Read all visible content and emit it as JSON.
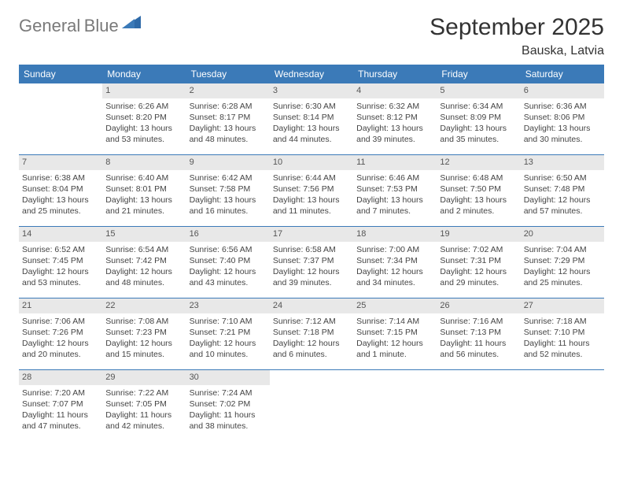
{
  "logo": {
    "text1": "General",
    "text2": "Blue"
  },
  "title": "September 2025",
  "location": "Bauska, Latvia",
  "colors": {
    "header_bg": "#3b7ab8",
    "header_text": "#ffffff",
    "daynum_bg": "#e8e8e8",
    "border": "#3b7ab8",
    "background": "#ffffff",
    "text": "#444444"
  },
  "layout": {
    "columns": 7,
    "rows": 5,
    "cell_fontsize": 10.5
  },
  "day_names": [
    "Sunday",
    "Monday",
    "Tuesday",
    "Wednesday",
    "Thursday",
    "Friday",
    "Saturday"
  ],
  "weeks": [
    [
      null,
      {
        "n": "1",
        "sr": "6:26 AM",
        "ss": "8:20 PM",
        "dl": "13 hours and 53 minutes."
      },
      {
        "n": "2",
        "sr": "6:28 AM",
        "ss": "8:17 PM",
        "dl": "13 hours and 48 minutes."
      },
      {
        "n": "3",
        "sr": "6:30 AM",
        "ss": "8:14 PM",
        "dl": "13 hours and 44 minutes."
      },
      {
        "n": "4",
        "sr": "6:32 AM",
        "ss": "8:12 PM",
        "dl": "13 hours and 39 minutes."
      },
      {
        "n": "5",
        "sr": "6:34 AM",
        "ss": "8:09 PM",
        "dl": "13 hours and 35 minutes."
      },
      {
        "n": "6",
        "sr": "6:36 AM",
        "ss": "8:06 PM",
        "dl": "13 hours and 30 minutes."
      }
    ],
    [
      {
        "n": "7",
        "sr": "6:38 AM",
        "ss": "8:04 PM",
        "dl": "13 hours and 25 minutes."
      },
      {
        "n": "8",
        "sr": "6:40 AM",
        "ss": "8:01 PM",
        "dl": "13 hours and 21 minutes."
      },
      {
        "n": "9",
        "sr": "6:42 AM",
        "ss": "7:58 PM",
        "dl": "13 hours and 16 minutes."
      },
      {
        "n": "10",
        "sr": "6:44 AM",
        "ss": "7:56 PM",
        "dl": "13 hours and 11 minutes."
      },
      {
        "n": "11",
        "sr": "6:46 AM",
        "ss": "7:53 PM",
        "dl": "13 hours and 7 minutes."
      },
      {
        "n": "12",
        "sr": "6:48 AM",
        "ss": "7:50 PM",
        "dl": "13 hours and 2 minutes."
      },
      {
        "n": "13",
        "sr": "6:50 AM",
        "ss": "7:48 PM",
        "dl": "12 hours and 57 minutes."
      }
    ],
    [
      {
        "n": "14",
        "sr": "6:52 AM",
        "ss": "7:45 PM",
        "dl": "12 hours and 53 minutes."
      },
      {
        "n": "15",
        "sr": "6:54 AM",
        "ss": "7:42 PM",
        "dl": "12 hours and 48 minutes."
      },
      {
        "n": "16",
        "sr": "6:56 AM",
        "ss": "7:40 PM",
        "dl": "12 hours and 43 minutes."
      },
      {
        "n": "17",
        "sr": "6:58 AM",
        "ss": "7:37 PM",
        "dl": "12 hours and 39 minutes."
      },
      {
        "n": "18",
        "sr": "7:00 AM",
        "ss": "7:34 PM",
        "dl": "12 hours and 34 minutes."
      },
      {
        "n": "19",
        "sr": "7:02 AM",
        "ss": "7:31 PM",
        "dl": "12 hours and 29 minutes."
      },
      {
        "n": "20",
        "sr": "7:04 AM",
        "ss": "7:29 PM",
        "dl": "12 hours and 25 minutes."
      }
    ],
    [
      {
        "n": "21",
        "sr": "7:06 AM",
        "ss": "7:26 PM",
        "dl": "12 hours and 20 minutes."
      },
      {
        "n": "22",
        "sr": "7:08 AM",
        "ss": "7:23 PM",
        "dl": "12 hours and 15 minutes."
      },
      {
        "n": "23",
        "sr": "7:10 AM",
        "ss": "7:21 PM",
        "dl": "12 hours and 10 minutes."
      },
      {
        "n": "24",
        "sr": "7:12 AM",
        "ss": "7:18 PM",
        "dl": "12 hours and 6 minutes."
      },
      {
        "n": "25",
        "sr": "7:14 AM",
        "ss": "7:15 PM",
        "dl": "12 hours and 1 minute."
      },
      {
        "n": "26",
        "sr": "7:16 AM",
        "ss": "7:13 PM",
        "dl": "11 hours and 56 minutes."
      },
      {
        "n": "27",
        "sr": "7:18 AM",
        "ss": "7:10 PM",
        "dl": "11 hours and 52 minutes."
      }
    ],
    [
      {
        "n": "28",
        "sr": "7:20 AM",
        "ss": "7:07 PM",
        "dl": "11 hours and 47 minutes."
      },
      {
        "n": "29",
        "sr": "7:22 AM",
        "ss": "7:05 PM",
        "dl": "11 hours and 42 minutes."
      },
      {
        "n": "30",
        "sr": "7:24 AM",
        "ss": "7:02 PM",
        "dl": "11 hours and 38 minutes."
      },
      null,
      null,
      null,
      null
    ]
  ],
  "labels": {
    "sunrise": "Sunrise:",
    "sunset": "Sunset:",
    "daylight": "Daylight:"
  }
}
